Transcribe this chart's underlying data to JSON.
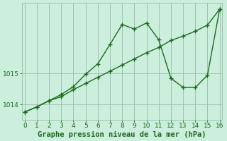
{
  "line1_x": [
    0,
    1,
    2,
    3,
    4,
    5,
    6,
    7,
    8,
    9,
    10,
    11,
    12,
    13,
    14,
    15,
    16
  ],
  "line1_y": [
    1013.75,
    1013.92,
    1014.12,
    1014.25,
    1014.48,
    1014.68,
    1014.88,
    1015.08,
    1015.28,
    1015.48,
    1015.68,
    1015.85,
    1016.08,
    1016.22,
    1016.38,
    1016.58,
    1017.1
  ],
  "line2_x": [
    0,
    1,
    2,
    3,
    4,
    5,
    6,
    7,
    8,
    9,
    10,
    11,
    12,
    13,
    14,
    15,
    16
  ],
  "line2_y": [
    1013.75,
    1013.92,
    1014.12,
    1014.32,
    1014.58,
    1014.98,
    1015.32,
    1015.95,
    1016.6,
    1016.45,
    1016.65,
    1016.1,
    1014.85,
    1014.55,
    1014.55,
    1014.95,
    1017.1
  ],
  "color": "#1a6b1a",
  "bg_color": "#cceedd",
  "grid_color": "#99bbaa",
  "xlabel": "Graphe pression niveau de la mer (hPa)",
  "ylim": [
    1013.5,
    1017.3
  ],
  "xlim": [
    -0.2,
    16.2
  ],
  "yticks": [
    1014,
    1015
  ],
  "xticks": [
    0,
    1,
    2,
    3,
    4,
    5,
    6,
    7,
    8,
    9,
    10,
    11,
    12,
    13,
    14,
    15,
    16
  ],
  "xlabel_fontsize": 7.5,
  "tick_fontsize": 6.5,
  "line_width": 1.0,
  "marker": "+",
  "marker_size": 4.0
}
